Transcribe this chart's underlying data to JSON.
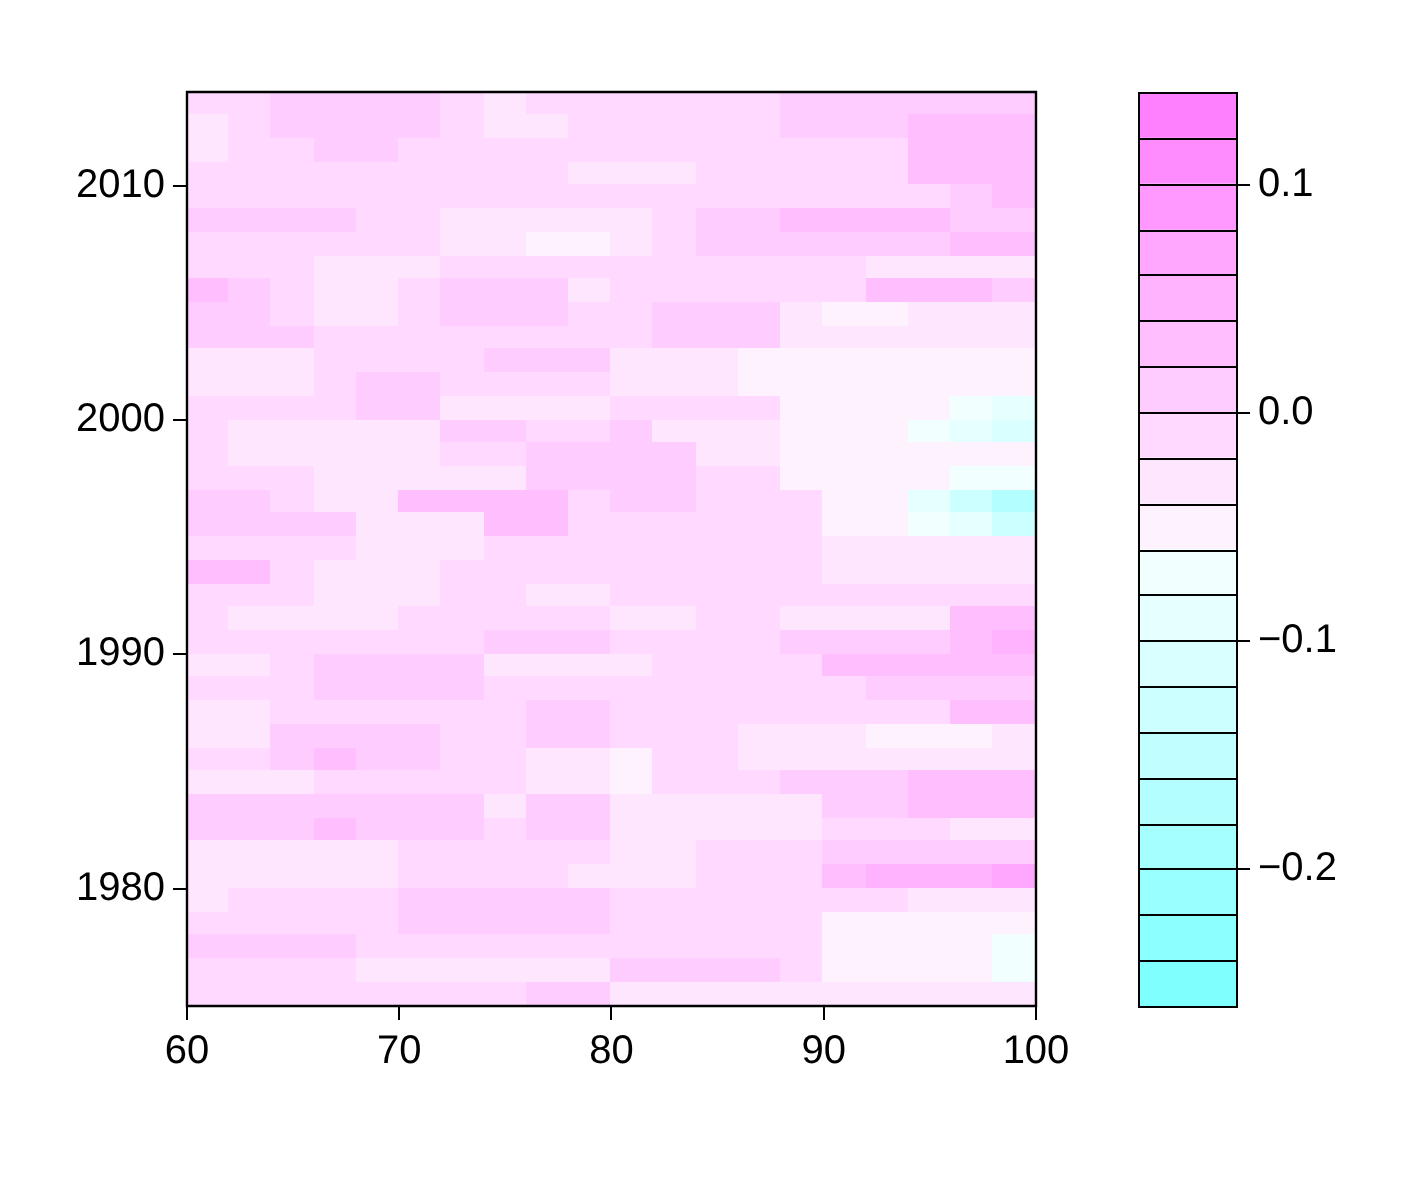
{
  "chart_data": {
    "type": "heatmap",
    "xlim": [
      60,
      100
    ],
    "xticks": [
      60,
      70,
      80,
      90,
      100
    ],
    "ylim": [
      1975,
      2014
    ],
    "yticks": [
      1980,
      1990,
      2000,
      2010
    ],
    "clim": [
      -0.26,
      0.14
    ],
    "cticks": [
      {
        "value": -0.2,
        "label": "−0.2"
      },
      {
        "value": -0.1,
        "label": "−0.1"
      },
      {
        "value": 0,
        "label": "0.0"
      },
      0.1
    ],
    "cells": [
      [
        -0.01,
        -0.01,
        0.01,
        0.01,
        0.01,
        0.01,
        -0.01,
        -0.03,
        -0.01,
        -0.01,
        -0.01,
        -0.01,
        -0.01,
        -0.01,
        0.01,
        0.01,
        0.01,
        0.01,
        0.01,
        0.01
      ],
      [
        -0.03,
        -0.01,
        0.01,
        0.01,
        0.01,
        0.01,
        -0.01,
        -0.03,
        -0.03,
        -0.01,
        -0.01,
        -0.01,
        -0.01,
        -0.01,
        0.01,
        0.01,
        0.01,
        0.03,
        0.03,
        0.03
      ],
      [
        -0.03,
        -0.01,
        -0.01,
        0.01,
        0.01,
        -0.01,
        -0.01,
        -0.01,
        -0.01,
        -0.01,
        -0.01,
        -0.01,
        -0.01,
        -0.01,
        -0.01,
        -0.01,
        -0.01,
        0.03,
        0.03,
        0.03
      ],
      [
        -0.01,
        -0.01,
        -0.01,
        -0.01,
        -0.01,
        -0.01,
        -0.01,
        -0.01,
        -0.01,
        -0.03,
        -0.03,
        -0.03,
        -0.01,
        -0.01,
        -0.01,
        -0.01,
        -0.01,
        0.03,
        0.03,
        0.03
      ],
      [
        -0.01,
        -0.01,
        -0.01,
        -0.01,
        -0.01,
        -0.01,
        -0.01,
        -0.01,
        -0.01,
        -0.01,
        -0.01,
        -0.01,
        -0.01,
        -0.01,
        -0.01,
        -0.01,
        -0.01,
        -0.01,
        0.01,
        0.03
      ],
      [
        0.01,
        0.01,
        0.01,
        0.01,
        -0.01,
        -0.01,
        -0.03,
        -0.03,
        -0.03,
        -0.03,
        -0.03,
        -0.01,
        0.01,
        0.01,
        0.03,
        0.03,
        0.03,
        0.03,
        0.01,
        0.01
      ],
      [
        -0.01,
        -0.01,
        -0.01,
        -0.01,
        -0.01,
        -0.01,
        -0.03,
        -0.03,
        -0.05,
        -0.05,
        -0.03,
        -0.01,
        0.01,
        0.01,
        0.01,
        0.01,
        0.01,
        0.01,
        0.03,
        0.03
      ],
      [
        -0.01,
        -0.01,
        -0.01,
        -0.03,
        -0.03,
        -0.03,
        -0.01,
        -0.01,
        -0.01,
        -0.01,
        -0.01,
        -0.01,
        -0.01,
        -0.01,
        -0.01,
        -0.01,
        -0.03,
        -0.03,
        -0.03,
        -0.03
      ],
      [
        0.03,
        0.01,
        -0.01,
        -0.03,
        -0.03,
        -0.01,
        0.01,
        0.01,
        0.01,
        -0.03,
        -0.01,
        -0.01,
        -0.01,
        -0.01,
        -0.01,
        -0.01,
        0.03,
        0.03,
        0.03,
        0.01
      ],
      [
        0.01,
        0.01,
        -0.01,
        -0.03,
        -0.03,
        -0.01,
        0.01,
        0.01,
        0.01,
        -0.01,
        -0.01,
        0.01,
        0.01,
        0.01,
        -0.03,
        -0.05,
        -0.05,
        -0.03,
        -0.03,
        -0.03
      ],
      [
        0.01,
        0.01,
        0.01,
        -0.01,
        -0.01,
        -0.01,
        -0.01,
        -0.01,
        -0.01,
        -0.01,
        -0.01,
        0.01,
        0.01,
        0.01,
        -0.03,
        -0.03,
        -0.03,
        -0.03,
        -0.03,
        -0.03
      ],
      [
        -0.03,
        -0.03,
        -0.03,
        -0.01,
        -0.01,
        -0.01,
        -0.01,
        0.01,
        0.01,
        0.01,
        -0.03,
        -0.03,
        -0.03,
        -0.05,
        -0.05,
        -0.05,
        -0.05,
        -0.05,
        -0.05,
        -0.05
      ],
      [
        -0.03,
        -0.03,
        -0.03,
        -0.01,
        0.01,
        0.01,
        -0.01,
        -0.01,
        -0.01,
        -0.01,
        -0.03,
        -0.03,
        -0.03,
        -0.05,
        -0.05,
        -0.05,
        -0.05,
        -0.05,
        -0.05,
        -0.05
      ],
      [
        -0.01,
        -0.01,
        -0.01,
        -0.01,
        0.01,
        0.01,
        -0.03,
        -0.03,
        -0.03,
        -0.03,
        -0.01,
        -0.01,
        -0.01,
        -0.01,
        -0.05,
        -0.05,
        -0.05,
        -0.05,
        -0.07,
        -0.09
      ],
      [
        -0.01,
        -0.03,
        -0.03,
        -0.03,
        -0.03,
        -0.03,
        0.01,
        0.01,
        -0.01,
        -0.01,
        0.01,
        -0.03,
        -0.03,
        -0.03,
        -0.05,
        -0.05,
        -0.05,
        -0.07,
        -0.09,
        -0.11
      ],
      [
        -0.01,
        -0.03,
        -0.03,
        -0.03,
        -0.03,
        -0.03,
        -0.01,
        -0.01,
        0.01,
        0.01,
        0.01,
        0.01,
        -0.03,
        -0.03,
        -0.05,
        -0.05,
        -0.05,
        -0.05,
        -0.05,
        -0.05
      ],
      [
        -0.01,
        -0.01,
        -0.01,
        -0.03,
        -0.03,
        -0.03,
        -0.03,
        -0.03,
        0.01,
        0.01,
        0.01,
        0.01,
        -0.01,
        -0.01,
        -0.05,
        -0.05,
        -0.05,
        -0.05,
        -0.07,
        -0.07
      ],
      [
        0.01,
        0.01,
        -0.01,
        -0.03,
        -0.03,
        0.03,
        0.03,
        0.03,
        0.03,
        -0.01,
        0.01,
        0.01,
        -0.01,
        -0.01,
        -0.01,
        -0.05,
        -0.05,
        -0.09,
        -0.13,
        -0.17
      ],
      [
        0.01,
        0.01,
        0.01,
        0.01,
        -0.03,
        -0.03,
        -0.03,
        0.03,
        0.03,
        -0.01,
        -0.01,
        -0.01,
        -0.01,
        -0.01,
        -0.01,
        -0.05,
        -0.05,
        -0.07,
        -0.09,
        -0.13
      ],
      [
        -0.01,
        -0.01,
        -0.01,
        -0.01,
        -0.03,
        -0.03,
        -0.03,
        -0.01,
        -0.01,
        -0.01,
        -0.01,
        -0.01,
        -0.01,
        -0.01,
        -0.01,
        -0.03,
        -0.03,
        -0.03,
        -0.03,
        -0.03
      ],
      [
        0.03,
        0.03,
        -0.01,
        -0.03,
        -0.03,
        -0.03,
        -0.01,
        -0.01,
        -0.01,
        -0.01,
        -0.01,
        -0.01,
        -0.01,
        -0.01,
        -0.01,
        -0.03,
        -0.03,
        -0.03,
        -0.03,
        -0.03
      ],
      [
        -0.01,
        -0.01,
        -0.01,
        -0.03,
        -0.03,
        -0.03,
        -0.01,
        -0.01,
        -0.03,
        -0.03,
        -0.01,
        -0.01,
        -0.01,
        -0.01,
        -0.01,
        -0.01,
        -0.01,
        -0.01,
        -0.01,
        -0.01
      ],
      [
        -0.01,
        -0.03,
        -0.03,
        -0.03,
        -0.03,
        -0.01,
        -0.01,
        -0.01,
        -0.01,
        -0.01,
        -0.03,
        -0.03,
        -0.01,
        -0.01,
        -0.03,
        -0.03,
        -0.03,
        -0.03,
        0.03,
        0.03
      ],
      [
        -0.01,
        -0.01,
        -0.01,
        -0.01,
        -0.01,
        -0.01,
        -0.01,
        0.01,
        0.01,
        0.01,
        -0.01,
        -0.01,
        -0.01,
        -0.01,
        0.01,
        0.01,
        0.01,
        0.01,
        0.03,
        0.05
      ],
      [
        -0.03,
        -0.03,
        -0.01,
        0.01,
        0.01,
        0.01,
        0.01,
        -0.03,
        -0.03,
        -0.03,
        -0.03,
        -0.01,
        -0.01,
        -0.01,
        -0.01,
        0.03,
        0.03,
        0.03,
        0.03,
        0.03
      ],
      [
        -0.01,
        -0.01,
        -0.01,
        0.01,
        0.01,
        0.01,
        0.01,
        -0.01,
        -0.01,
        -0.01,
        -0.01,
        -0.01,
        -0.01,
        -0.01,
        -0.01,
        -0.01,
        0.01,
        0.01,
        0.01,
        0.01
      ],
      [
        -0.03,
        -0.03,
        -0.01,
        -0.01,
        -0.01,
        -0.01,
        -0.01,
        -0.01,
        0.01,
        0.01,
        -0.01,
        -0.01,
        -0.01,
        -0.01,
        -0.01,
        -0.01,
        -0.01,
        -0.01,
        0.03,
        0.03
      ],
      [
        -0.03,
        -0.03,
        0.01,
        0.01,
        0.01,
        0.01,
        -0.01,
        -0.01,
        0.01,
        0.01,
        -0.01,
        -0.01,
        -0.01,
        -0.03,
        -0.03,
        -0.03,
        -0.05,
        -0.05,
        -0.05,
        -0.03
      ],
      [
        -0.01,
        -0.01,
        0.01,
        0.03,
        0.01,
        0.01,
        -0.01,
        -0.01,
        -0.03,
        -0.03,
        -0.05,
        -0.01,
        -0.01,
        -0.03,
        -0.03,
        -0.03,
        -0.03,
        -0.03,
        -0.03,
        -0.03
      ],
      [
        -0.03,
        -0.03,
        -0.03,
        -0.01,
        -0.01,
        -0.01,
        -0.01,
        -0.01,
        -0.03,
        -0.03,
        -0.05,
        -0.01,
        -0.01,
        -0.01,
        0.01,
        0.01,
        0.01,
        0.03,
        0.03,
        0.03
      ],
      [
        0.01,
        0.01,
        0.01,
        0.01,
        0.01,
        0.01,
        0.01,
        -0.03,
        0.01,
        0.01,
        -0.03,
        -0.03,
        -0.03,
        -0.03,
        -0.03,
        0.01,
        0.01,
        0.03,
        0.03,
        0.03
      ],
      [
        0.01,
        0.01,
        0.01,
        0.03,
        0.01,
        0.01,
        0.01,
        -0.01,
        0.01,
        0.01,
        -0.03,
        -0.03,
        -0.03,
        -0.03,
        -0.03,
        -0.01,
        -0.01,
        -0.01,
        -0.03,
        -0.03
      ],
      [
        -0.03,
        -0.03,
        -0.03,
        -0.03,
        -0.03,
        -0.01,
        -0.01,
        -0.01,
        -0.01,
        -0.01,
        -0.03,
        -0.03,
        -0.01,
        -0.01,
        -0.01,
        0.01,
        0.01,
        0.01,
        0.01,
        0.01
      ],
      [
        -0.03,
        -0.03,
        -0.03,
        -0.03,
        -0.03,
        -0.01,
        -0.01,
        -0.01,
        -0.01,
        -0.03,
        -0.03,
        -0.03,
        -0.01,
        -0.01,
        -0.01,
        0.03,
        0.05,
        0.05,
        0.05,
        0.07
      ],
      [
        -0.03,
        -0.01,
        -0.01,
        -0.01,
        -0.01,
        0.01,
        0.01,
        0.01,
        0.01,
        0.01,
        -0.01,
        -0.01,
        -0.01,
        -0.01,
        -0.01,
        -0.01,
        -0.01,
        -0.03,
        -0.03,
        -0.03
      ],
      [
        -0.01,
        -0.01,
        -0.01,
        -0.01,
        -0.01,
        0.01,
        0.01,
        0.01,
        0.01,
        0.01,
        -0.01,
        -0.01,
        -0.01,
        -0.01,
        -0.01,
        -0.05,
        -0.05,
        -0.05,
        -0.05,
        -0.05
      ],
      [
        0.01,
        0.01,
        0.01,
        0.01,
        -0.01,
        -0.01,
        -0.01,
        -0.01,
        -0.01,
        -0.01,
        -0.01,
        -0.01,
        -0.01,
        -0.01,
        -0.01,
        -0.05,
        -0.05,
        -0.05,
        -0.05,
        -0.07
      ],
      [
        -0.01,
        -0.01,
        -0.01,
        -0.01,
        -0.03,
        -0.03,
        -0.03,
        -0.03,
        -0.03,
        -0.03,
        0.01,
        0.01,
        0.01,
        0.01,
        -0.01,
        -0.05,
        -0.05,
        -0.05,
        -0.05,
        -0.07
      ],
      [
        -0.01,
        -0.01,
        -0.01,
        -0.01,
        -0.01,
        -0.01,
        -0.01,
        -0.01,
        0.01,
        0.01,
        -0.03,
        -0.03,
        -0.03,
        -0.03,
        -0.03,
        -0.03,
        -0.03,
        -0.03,
        -0.03,
        -0.03
      ]
    ]
  }
}
